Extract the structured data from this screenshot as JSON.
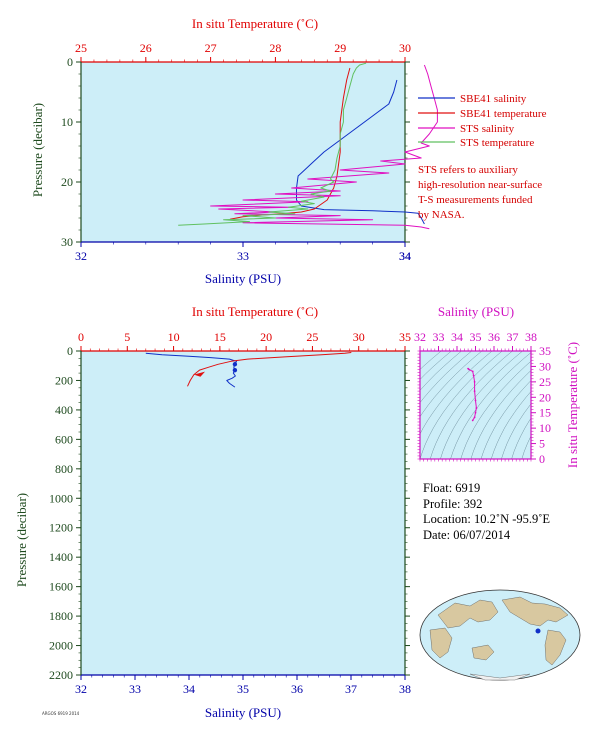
{
  "colors": {
    "plot_bg": "#cdeef8",
    "salinity_axis": "#0000a8",
    "temperature_axis": "#e00000",
    "pressure_axis": "#1e4a1e",
    "sbe_salinity": "#1030c8",
    "sbe_temperature": "#e01010",
    "sts_salinity": "#e010c0",
    "sts_temperature": "#60c060",
    "ts_axis": "#d010c0",
    "density_contour": "#5a7a8a"
  },
  "top_plot": {
    "temp_axis_title": "In situ Temperature (˚C)",
    "sal_axis_title": "Salinity (PSU)",
    "pressure_axis_title": "Pressure (decibar)",
    "legend": [
      {
        "label": "SBE41 salinity",
        "color": "#1030c8"
      },
      {
        "label": "SBE41 temperature",
        "color": "#e01010"
      },
      {
        "label": "STS salinity",
        "color": "#e010c0"
      },
      {
        "label": "STS temperature",
        "color": "#60c060"
      }
    ],
    "note": [
      "STS refers to auxiliary",
      "high-resolution near-surface",
      "T-S measurements funded",
      "by NASA."
    ]
  },
  "bottom_plot": {
    "temp_axis_title": "In situ Temperature (˚C)",
    "sal_axis_title": "Salinity (PSU)",
    "pressure_axis_title": "Pressure (decibar)"
  },
  "ts_plot": {
    "sal_axis_title": "Salinity (PSU)",
    "temp_axis_title": "In situ Temperature (˚C)"
  },
  "info": {
    "float": "Float: 6919",
    "profile": "Profile: 392",
    "location": "Location: 10.2˚N -95.9˚E",
    "date": "Date: 06/07/2014"
  },
  "footer": "ARGOS 6919 2014",
  "chart_data": [
    {
      "type": "line",
      "id": "top_profile",
      "x_salinity_range": [
        32,
        34
      ],
      "x_temperature_range": [
        25,
        30
      ],
      "y_pressure_range": [
        0,
        30
      ],
      "y_inverted": true,
      "salinity_ticks": [
        32,
        33,
        34,
        34
      ],
      "salinity_tick_labels": [
        "32",
        "33",
        "34",
        "34"
      ],
      "temperature_ticks": [
        25,
        26,
        27,
        28,
        29,
        30
      ],
      "pressure_ticks": [
        0,
        10,
        20,
        30
      ],
      "series": [
        {
          "name": "SBE41 salinity",
          "axis": "salinity",
          "color": "#1030c8",
          "points": [
            [
              33.95,
              3
            ],
            [
              33.93,
              5
            ],
            [
              33.9,
              7
            ],
            [
              33.8,
              9
            ],
            [
              33.7,
              11
            ],
            [
              33.6,
              13
            ],
            [
              33.5,
              15
            ],
            [
              33.42,
              17
            ],
            [
              33.38,
              18
            ],
            [
              33.34,
              19
            ],
            [
              33.33,
              21
            ],
            [
              33.33,
              23
            ],
            [
              33.36,
              24
            ],
            [
              33.5,
              24.6
            ],
            [
              33.8,
              24.8
            ],
            [
              34.0,
              25.0
            ],
            [
              34.08,
              25.2
            ],
            [
              34.1,
              26
            ],
            [
              34.12,
              27
            ]
          ]
        },
        {
          "name": "SBE41 temperature",
          "axis": "temperature",
          "color": "#e01010",
          "points": [
            [
              29.15,
              1
            ],
            [
              29.1,
              3
            ],
            [
              29.05,
              6
            ],
            [
              29.0,
              10
            ],
            [
              29.0,
              15
            ],
            [
              28.95,
              19
            ],
            [
              28.9,
              21
            ],
            [
              28.8,
              23
            ],
            [
              28.6,
              24.5
            ],
            [
              28.4,
              25
            ],
            [
              28.1,
              25.3
            ],
            [
              27.8,
              25.5
            ],
            [
              27.5,
              25.8
            ],
            [
              27.3,
              26.2
            ]
          ]
        },
        {
          "name": "STS salinity",
          "axis": "salinity",
          "color": "#e010c0",
          "points": [
            [
              34.12,
              0.5
            ],
            [
              34.14,
              2
            ],
            [
              34.16,
              4
            ],
            [
              34.18,
              6
            ],
            [
              34.2,
              8
            ],
            [
              34.2,
              10
            ],
            [
              34.15,
              12
            ],
            [
              34.1,
              13.5
            ],
            [
              34.15,
              14
            ],
            [
              34.0,
              15
            ],
            [
              34.1,
              16
            ],
            [
              33.85,
              16.5
            ],
            [
              34.0,
              17
            ],
            [
              33.6,
              18
            ],
            [
              33.9,
              18.5
            ],
            [
              33.4,
              19.5
            ],
            [
              33.7,
              20
            ],
            [
              33.3,
              21
            ],
            [
              33.6,
              21.5
            ],
            [
              33.2,
              22
            ],
            [
              33.6,
              22.3
            ],
            [
              33.0,
              23
            ],
            [
              33.4,
              23.3
            ],
            [
              32.8,
              24
            ],
            [
              33.3,
              24.2
            ],
            [
              32.85,
              24.5
            ],
            [
              33.2,
              25
            ],
            [
              32.95,
              25.3
            ],
            [
              33.6,
              25.6
            ],
            [
              33.2,
              26
            ],
            [
              33.8,
              26.3
            ],
            [
              33.0,
              26.8
            ],
            [
              34.0,
              27.2
            ],
            [
              34.1,
              27.5
            ],
            [
              34.15,
              27.8
            ]
          ]
        },
        {
          "name": "STS temperature",
          "axis": "temperature",
          "color": "#60c060",
          "points": [
            [
              29.4,
              0.2
            ],
            [
              29.3,
              0.5
            ],
            [
              29.25,
              1
            ],
            [
              29.2,
              2
            ],
            [
              29.15,
              4
            ],
            [
              29.1,
              6
            ],
            [
              29.05,
              8
            ],
            [
              29.05,
              10
            ],
            [
              29.0,
              12
            ],
            [
              29.0,
              14
            ],
            [
              28.95,
              16
            ],
            [
              28.92,
              18
            ],
            [
              28.85,
              19.5
            ],
            [
              28.9,
              20
            ],
            [
              28.7,
              21
            ],
            [
              28.85,
              21.5
            ],
            [
              28.55,
              22
            ],
            [
              28.75,
              22.5
            ],
            [
              28.4,
              23.2
            ],
            [
              28.6,
              23.6
            ],
            [
              28.2,
              24.2
            ],
            [
              28.5,
              24.5
            ],
            [
              27.9,
              25
            ],
            [
              28.3,
              25.3
            ],
            [
              27.5,
              25.6
            ],
            [
              28.0,
              26
            ],
            [
              27.2,
              26.3
            ],
            [
              27.6,
              26.6
            ],
            [
              26.9,
              27.0
            ],
            [
              26.5,
              27.2
            ]
          ]
        }
      ]
    },
    {
      "type": "line",
      "id": "full_profile",
      "x_salinity_range": [
        32,
        38
      ],
      "x_temperature_range": [
        0,
        35
      ],
      "y_pressure_range": [
        0,
        2200
      ],
      "y_inverted": true,
      "salinity_ticks": [
        32,
        33,
        34,
        35,
        36,
        37,
        38
      ],
      "temperature_ticks": [
        0,
        5,
        10,
        15,
        20,
        25,
        30,
        35
      ],
      "pressure_ticks": [
        0,
        200,
        400,
        600,
        800,
        1000,
        1200,
        1400,
        1600,
        1800,
        2000,
        2200
      ],
      "series": [
        {
          "name": "SBE41 salinity",
          "axis": "salinity",
          "color": "#1030c8",
          "points": [
            [
              33.2,
              15
            ],
            [
              33.5,
              25
            ],
            [
              34.0,
              35
            ],
            [
              34.4,
              45
            ],
            [
              34.75,
              55
            ],
            [
              34.88,
              70
            ],
            [
              34.85,
              90
            ],
            [
              34.83,
              110
            ],
            [
              34.85,
              130
            ],
            [
              34.82,
              150
            ],
            [
              34.86,
              170
            ],
            [
              34.8,
              185
            ],
            [
              34.7,
              200
            ],
            [
              34.75,
              220
            ],
            [
              34.85,
              245
            ]
          ]
        },
        {
          "name": "SBE41 temperature",
          "axis": "temperature",
          "color": "#e01010",
          "points": [
            [
              29.2,
              10
            ],
            [
              28.5,
              15
            ],
            [
              26.0,
              25
            ],
            [
              22.0,
              40
            ],
            [
              18.0,
              55
            ],
            [
              16.2,
              70
            ],
            [
              15.5,
              80
            ],
            [
              14.8,
              90
            ],
            [
              13.8,
              110
            ],
            [
              12.8,
              130
            ],
            [
              12.2,
              160
            ],
            [
              11.8,
              200
            ],
            [
              11.5,
              240
            ]
          ]
        }
      ]
    },
    {
      "type": "line",
      "id": "ts_diagram",
      "x_salinity_range": [
        32,
        38
      ],
      "y_temperature_range": [
        0,
        35
      ],
      "salinity_ticks": [
        32,
        33,
        34,
        35,
        36,
        37,
        38
      ],
      "temperature_ticks": [
        0,
        5,
        10,
        15,
        20,
        25,
        30,
        35
      ],
      "series": [
        {
          "name": "STS salinity",
          "axis": "ts",
          "color": "#e010c0",
          "points": [
            [
              34.6,
              29.3
            ],
            [
              34.65,
              29.0
            ],
            [
              34.85,
              28.4
            ],
            [
              34.9,
              27.0
            ],
            [
              34.95,
              25.0
            ],
            [
              34.95,
              22.0
            ],
            [
              35.0,
              19.0
            ],
            [
              35.05,
              16.5
            ],
            [
              35.0,
              15.0
            ],
            [
              34.95,
              13.5
            ],
            [
              34.85,
              12.5
            ]
          ]
        }
      ]
    }
  ]
}
